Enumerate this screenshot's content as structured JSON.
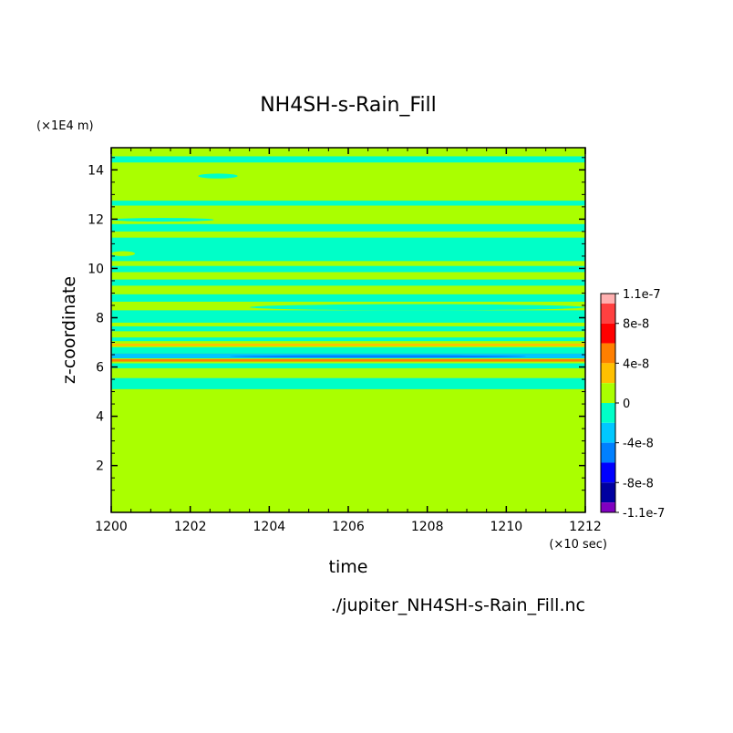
{
  "chart_data": {
    "type": "heatmap",
    "title": "NH4SH-s-Rain_Fill",
    "xlabel": "time",
    "ylabel": "z-coordinate",
    "x_units": "(×10 sec)",
    "y_units": "(×1E4 m)",
    "footnote": "./jupiter_NH4SH-s-Rain_Fill.nc",
    "xlim": [
      1200,
      1212
    ],
    "ylim": [
      0.1,
      14.9
    ],
    "x_ticks": [
      "1200",
      "1202",
      "1204",
      "1206",
      "1208",
      "1210",
      "1212"
    ],
    "y_ticks": [
      "2",
      "4",
      "6",
      "8",
      "10",
      "12",
      "14"
    ],
    "x_tick_values": [
      1200,
      1202,
      1204,
      1206,
      1208,
      1210,
      1212
    ],
    "y_tick_values": [
      2,
      4,
      6,
      8,
      10,
      12,
      14
    ],
    "colorbar": {
      "labels": [
        "1.1e-7",
        "8e-8",
        "4e-8",
        "0",
        "-4e-8",
        "-8e-8",
        "-1.1e-7"
      ],
      "label_values": [
        1.1e-07,
        8e-08,
        4e-08,
        0,
        -4e-08,
        -8e-08,
        -1.1e-07
      ],
      "levels": [
        1.1e-07,
        1e-07,
        8e-08,
        6e-08,
        4e-08,
        2e-08,
        0,
        -2e-08,
        -4e-08,
        -6e-08,
        -8e-08,
        -1e-07,
        -1.1e-07
      ],
      "colors": [
        "#ffb0b0",
        "#ff4040",
        "#ff0000",
        "#ff7f00",
        "#ffc000",
        "#aaff00",
        "#00ffc8",
        "#00c8ff",
        "#0080ff",
        "#0000ff",
        "#0000a0",
        "#8000c0"
      ]
    },
    "background_color": "#aaff00",
    "bands": [
      {
        "z0": 14.3,
        "z1": 14.55,
        "color": "#00ffc8"
      },
      {
        "z0": 12.55,
        "z1": 12.75,
        "color": "#00ffc8"
      },
      {
        "z0": 11.5,
        "z1": 11.8,
        "color": "#00ffc8"
      },
      {
        "z0": 10.3,
        "z1": 11.25,
        "color": "#00ffc8"
      },
      {
        "z0": 9.85,
        "z1": 10.1,
        "color": "#00ffc8"
      },
      {
        "z0": 9.3,
        "z1": 9.55,
        "color": "#00ffc8"
      },
      {
        "z0": 8.65,
        "z1": 8.95,
        "color": "#00ffc8"
      },
      {
        "z0": 7.8,
        "z1": 8.3,
        "color": "#00ffc8"
      },
      {
        "z0": 7.45,
        "z1": 7.65,
        "color": "#00ffc8"
      },
      {
        "z0": 7.05,
        "z1": 7.2,
        "color": "#00ffc8"
      },
      {
        "z0": 6.85,
        "z1": 6.95,
        "color": "#ffc000"
      },
      {
        "z0": 6.55,
        "z1": 6.8,
        "color": "#00ffc8"
      },
      {
        "z0": 6.35,
        "z1": 6.55,
        "color": "#00c8ff"
      },
      {
        "z0": 6.22,
        "z1": 6.32,
        "color": "#ff7f00"
      },
      {
        "z0": 5.95,
        "z1": 6.15,
        "color": "#00ffc8"
      },
      {
        "z0": 5.1,
        "z1": 5.55,
        "color": "#00ffc8"
      }
    ],
    "patches": [
      {
        "t0": 1202.2,
        "t1": 1203.2,
        "z0": 13.65,
        "z1": 13.85,
        "color": "#00ffc8"
      },
      {
        "t0": 1200.0,
        "t1": 1202.6,
        "z0": 11.9,
        "z1": 12.05,
        "color": "#00ffc8"
      },
      {
        "t0": 1200.0,
        "t1": 1200.6,
        "z0": 10.5,
        "z1": 10.7,
        "color": "#aaff00"
      },
      {
        "t0": 1203.5,
        "t1": 1212.0,
        "z0": 8.3,
        "z1": 8.55,
        "color": "#00ffc8"
      },
      {
        "t0": 1203.0,
        "t1": 1210.5,
        "z0": 6.38,
        "z1": 6.48,
        "color": "#0080ff"
      },
      {
        "t0": 1207.5,
        "t1": 1208.1,
        "z0": 5.85,
        "z1": 5.95,
        "color": "#aaff00"
      }
    ]
  }
}
